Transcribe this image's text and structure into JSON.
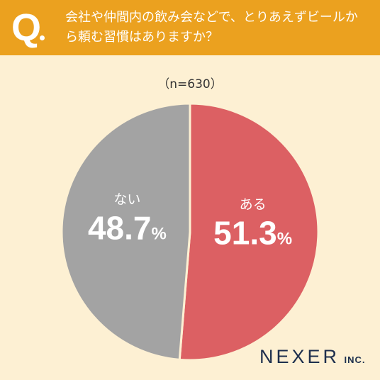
{
  "header": {
    "q_mark": "Q",
    "question": "会社や仲間内の飲み会などで、とりあえずビールから頼む習慣はありますか？"
  },
  "sample_size": "（n=630）",
  "colors": {
    "header_bg": "#eba11f",
    "background": "#fdf0d3",
    "slice_yes": "#dc6063",
    "slice_no": "#a3a3a3",
    "label_text": "#ffffff"
  },
  "chart_data": {
    "type": "pie",
    "slices": [
      {
        "label": "ある",
        "value": 51.3,
        "value_text": "51.3",
        "unit": "%",
        "color": "#dc6063"
      },
      {
        "label": "ない",
        "value": 48.7,
        "value_text": "48.7",
        "unit": "%",
        "color": "#a3a3a3"
      }
    ]
  },
  "logo": {
    "main": "NEXER",
    "sub": "INC."
  }
}
